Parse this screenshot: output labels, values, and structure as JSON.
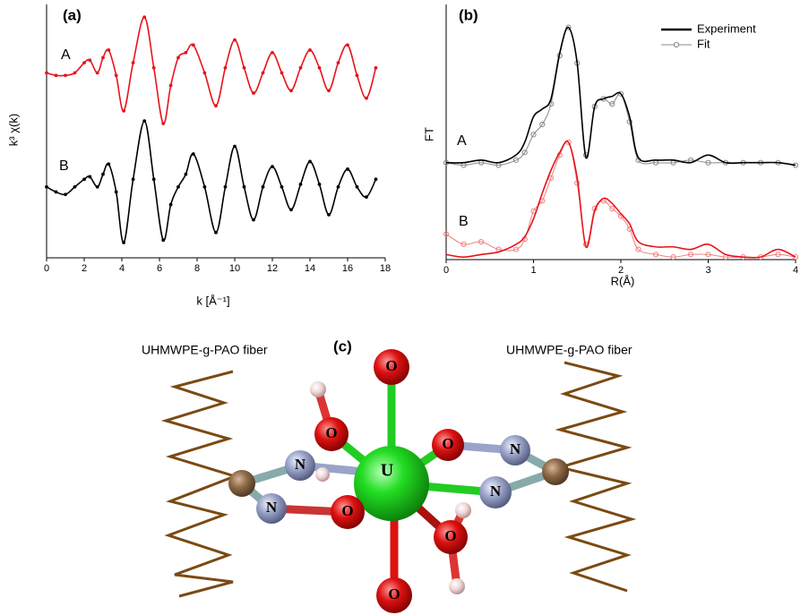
{
  "chart_data": [
    {
      "type": "line",
      "panel": "(a)",
      "xlabel": "k [Å⁻¹]",
      "ylabel": "k³ χ(k)",
      "xlim": [
        0,
        18
      ],
      "xticks": [
        0,
        2,
        4,
        6,
        8,
        10,
        12,
        14,
        16,
        18
      ],
      "ylim": [
        0,
        10
      ],
      "x": [
        0,
        0.5,
        1,
        1.5,
        2,
        2.3,
        2.7,
        3,
        3.3,
        3.7,
        4.1,
        4.6,
        5.2,
        5.7,
        6.2,
        6.6,
        7,
        7.4,
        7.8,
        8.4,
        9,
        9.5,
        10,
        10.5,
        11,
        11.5,
        12,
        12.5,
        13,
        13.5,
        14,
        14.5,
        15,
        15.5,
        16,
        16.5,
        17,
        17.5
      ],
      "series": [
        {
          "name": "A",
          "color": "#e8141b",
          "values": [
            7.3,
            7.2,
            7.2,
            7.3,
            7.7,
            7.8,
            7.3,
            7.9,
            8.2,
            7.2,
            5.8,
            7.7,
            9.5,
            7.5,
            5.3,
            6.8,
            7.9,
            8.1,
            8.4,
            7.3,
            6.0,
            7.5,
            8.6,
            7.5,
            6.5,
            7.3,
            8.1,
            7.3,
            6.6,
            7.5,
            8.2,
            7.5,
            6.6,
            7.7,
            8.4,
            7.2,
            6.3,
            7.5
          ]
        },
        {
          "name": "B",
          "color": "#000000",
          "values": [
            2.8,
            2.6,
            2.5,
            2.8,
            3.1,
            3.2,
            2.8,
            3.3,
            3.7,
            2.6,
            0.6,
            3.1,
            5.4,
            3.1,
            0.7,
            2.1,
            2.8,
            3.3,
            4.1,
            2.8,
            1.0,
            2.8,
            4.4,
            2.8,
            1.5,
            2.8,
            3.6,
            2.8,
            1.9,
            2.9,
            3.8,
            2.9,
            1.7,
            2.8,
            3.5,
            2.8,
            2.4,
            3.1
          ]
        }
      ]
    },
    {
      "type": "line",
      "panel": "(b)",
      "xlabel": "R(Å)",
      "ylabel": "FT",
      "xlim": [
        0,
        4
      ],
      "xticks": [
        0,
        1,
        2,
        3,
        4
      ],
      "ylim": [
        0,
        10
      ],
      "legend": {
        "position": "upper right",
        "entries": [
          {
            "name": "Experiment",
            "color": "#000000"
          },
          {
            "name": "Fit",
            "color": "#888888"
          }
        ]
      },
      "x": [
        0,
        0.2,
        0.4,
        0.6,
        0.8,
        0.9,
        1.0,
        1.1,
        1.2,
        1.3,
        1.4,
        1.5,
        1.6,
        1.7,
        1.8,
        1.9,
        2.0,
        2.1,
        2.2,
        2.4,
        2.6,
        2.8,
        3.0,
        3.2,
        3.4,
        3.6,
        3.8,
        4.0
      ],
      "groups": [
        {
          "label": "A",
          "color": "#000000",
          "fit_color": "#888888",
          "experiment": [
            3.8,
            3.8,
            3.9,
            3.8,
            4.1,
            4.6,
            5.6,
            5.9,
            6.3,
            8.1,
            9.1,
            7.7,
            4.0,
            6.0,
            6.3,
            6.4,
            6.5,
            5.6,
            4.0,
            3.9,
            3.9,
            3.8,
            4.1,
            3.8,
            3.8,
            3.8,
            3.8,
            3.7
          ],
          "fit": [
            3.8,
            3.7,
            3.8,
            3.7,
            3.9,
            4.2,
            4.9,
            5.3,
            6.1,
            8.0,
            9.1,
            7.7,
            4.1,
            6.0,
            6.3,
            6.1,
            6.5,
            5.4,
            3.9,
            3.8,
            3.8,
            3.9,
            3.8,
            3.8,
            3.8,
            3.8,
            3.8,
            3.7
          ]
        },
        {
          "label": "B",
          "color": "#e8141b",
          "fit_color": "#f08080",
          "experiment": [
            0.2,
            0.1,
            0.2,
            0.3,
            0.6,
            0.9,
            1.6,
            2.6,
            3.5,
            4.2,
            4.6,
            3.2,
            0.5,
            1.9,
            2.4,
            2.2,
            1.8,
            1.4,
            0.7,
            0.5,
            0.5,
            0.4,
            0.6,
            0.2,
            0.1,
            0.1,
            0.4,
            0.1
          ],
          "fit": [
            1.0,
            0.6,
            0.7,
            0.4,
            0.4,
            0.8,
            1.9,
            2.3,
            3.2,
            4.1,
            4.6,
            3.0,
            0.6,
            2.0,
            2.3,
            2.0,
            1.7,
            1.2,
            0.4,
            0.2,
            0.1,
            0.2,
            0.2,
            0.1,
            0.1,
            0.1,
            0.2,
            0.1
          ]
        }
      ]
    }
  ],
  "diagram": {
    "panel": "(c)",
    "fiber_left": "UHMWPE-g-PAO fiber",
    "fiber_right": "UHMWPE-g-PAO fiber",
    "atoms": [
      "U",
      "O",
      "O",
      "O",
      "O",
      "O",
      "O",
      "N",
      "N",
      "N",
      "N"
    ]
  }
}
